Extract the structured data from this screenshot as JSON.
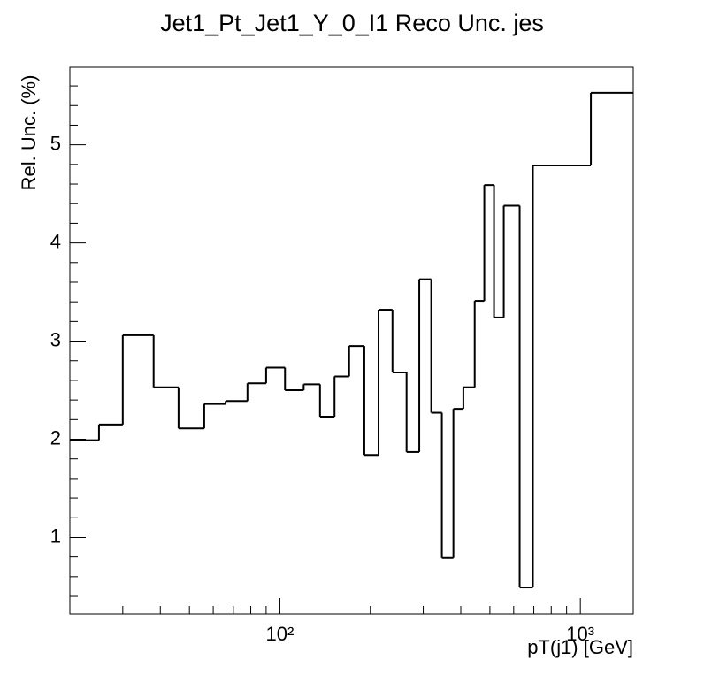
{
  "chart_data": {
    "type": "histogram",
    "title": "Jet1_Pt_Jet1_Y_0_I1 Reco Unc. jes",
    "xlabel": "pT(j1) [GeV]",
    "ylabel": "Rel. Unc. (%)",
    "xscale": "log",
    "bins": [
      20,
      25,
      30,
      38,
      46,
      56,
      66,
      78,
      90,
      104,
      120,
      136,
      152,
      170,
      191,
      213,
      237,
      264,
      291,
      319,
      346,
      378,
      408,
      445,
      479,
      516,
      556,
      628,
      695,
      1084,
      1500
    ],
    "values": [
      1.99,
      2.15,
      3.06,
      2.53,
      2.11,
      2.36,
      2.39,
      2.57,
      2.73,
      2.5,
      2.56,
      2.23,
      2.64,
      2.95,
      1.84,
      3.32,
      2.68,
      1.87,
      3.63,
      2.27,
      0.79,
      2.31,
      2.53,
      3.41,
      4.59,
      3.24,
      4.38,
      0.49,
      4.79,
      5.53
    ],
    "color": "#000000",
    "xlim": [
      20,
      1500
    ],
    "ylim": [
      0.22,
      5.79
    ],
    "xticks": [
      {
        "value": 100,
        "label": "10²"
      },
      {
        "value": 1000,
        "label": "10³"
      }
    ],
    "xminorticks": [
      20,
      30,
      40,
      50,
      60,
      70,
      80,
      90,
      200,
      300,
      400,
      500,
      600,
      700,
      800,
      900
    ],
    "yticks": [
      1,
      2,
      3,
      4,
      5
    ],
    "yminorticks": [
      0.4,
      0.6,
      0.8,
      1.2,
      1.4,
      1.6,
      1.8,
      2.2,
      2.4,
      2.6,
      2.8,
      3.2,
      3.4,
      3.6,
      3.8,
      4.2,
      4.4,
      4.6,
      4.8,
      5.2,
      5.4,
      5.6
    ]
  }
}
